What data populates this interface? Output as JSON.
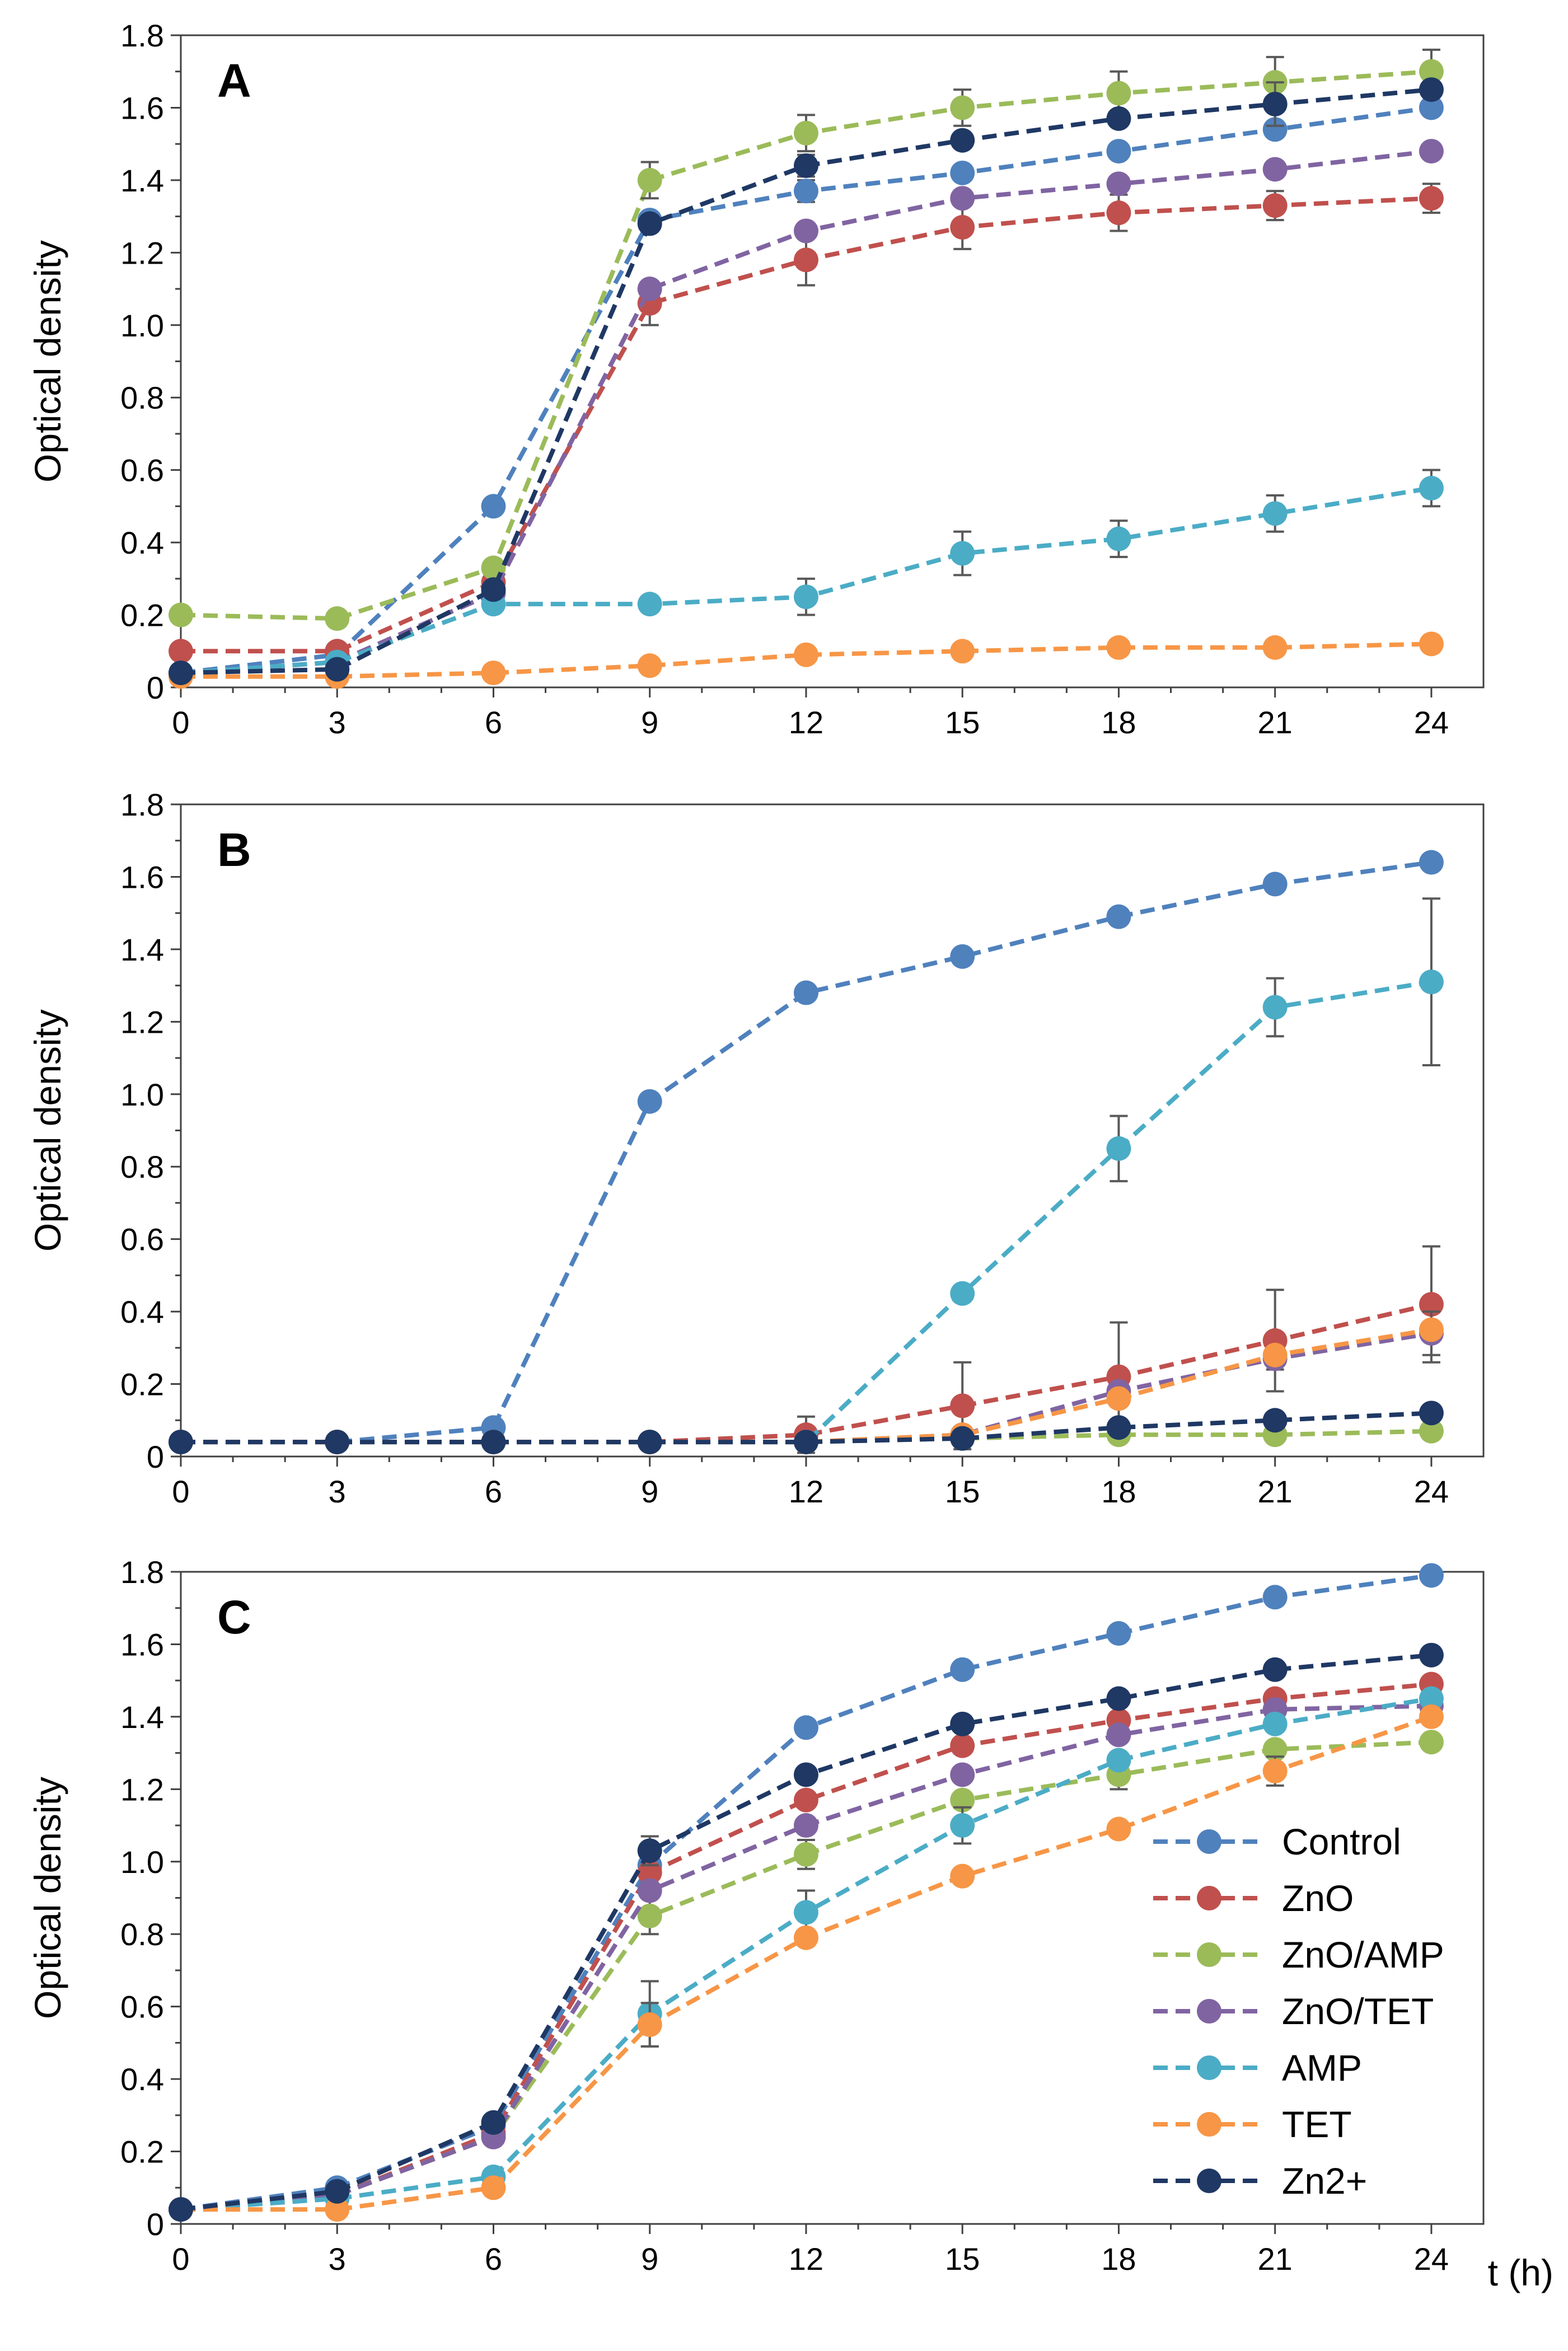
{
  "figure": {
    "x_unit_label": "t (h)",
    "series_styles": [
      {
        "name": "Control",
        "color": "#4f81bd"
      },
      {
        "name": "ZnO",
        "color": "#c0504d"
      },
      {
        "name": "ZnO/AMP",
        "color": "#9bbb59"
      },
      {
        "name": "ZnO/TET",
        "color": "#8064a2"
      },
      {
        "name": "AMP",
        "color": "#4bacc6"
      },
      {
        "name": "TET",
        "color": "#f79646"
      },
      {
        "name": "Zn2+",
        "color": "#1f3864"
      }
    ]
  },
  "chart_data": [
    {
      "type": "line",
      "title": "A",
      "xlabel": "",
      "ylabel": "Optical density",
      "x": [
        0,
        3,
        6,
        9,
        12,
        15,
        18,
        21,
        24
      ],
      "xlim": [
        0,
        25
      ],
      "ylim": [
        0,
        1.8
      ],
      "x_ticks": [
        "0",
        "3",
        "6",
        "9",
        "12",
        "15",
        "18",
        "21",
        "24"
      ],
      "y_ticks": [
        "0",
        "0.2",
        "0.4",
        "0.6",
        "0.8",
        "1.0",
        "1.2",
        "1.4",
        "1.6",
        "1.8"
      ],
      "legend": false,
      "series": [
        {
          "name": "Control",
          "values": [
            0.04,
            0.09,
            0.5,
            1.29,
            1.37,
            1.42,
            1.48,
            1.54,
            1.6
          ],
          "errors": [
            0,
            0,
            0,
            0,
            0.03,
            0,
            0.02,
            0,
            0
          ]
        },
        {
          "name": "ZnO",
          "values": [
            0.1,
            0.1,
            0.29,
            1.06,
            1.18,
            1.27,
            1.31,
            1.33,
            1.35
          ],
          "errors": [
            0,
            0,
            0,
            0.06,
            0.07,
            0.06,
            0.05,
            0.04,
            0.04
          ]
        },
        {
          "name": "ZnO/AMP",
          "values": [
            0.2,
            0.19,
            0.33,
            1.4,
            1.53,
            1.6,
            1.64,
            1.67,
            1.7
          ],
          "errors": [
            0,
            0,
            0,
            0.05,
            0.05,
            0.05,
            0.06,
            0.07,
            0.06
          ]
        },
        {
          "name": "ZnO/TET",
          "values": [
            0.04,
            0.07,
            0.26,
            1.1,
            1.26,
            1.35,
            1.39,
            1.43,
            1.48
          ],
          "errors": [
            0,
            0,
            0,
            0,
            0,
            0,
            0,
            0,
            0
          ]
        },
        {
          "name": "AMP",
          "values": [
            0.04,
            0.07,
            0.23,
            0.23,
            0.25,
            0.37,
            0.41,
            0.48,
            0.55
          ],
          "errors": [
            0,
            0,
            0,
            0,
            0.05,
            0.06,
            0.05,
            0.05,
            0.05
          ]
        },
        {
          "name": "TET",
          "values": [
            0.03,
            0.03,
            0.04,
            0.06,
            0.09,
            0.1,
            0.11,
            0.11,
            0.12
          ],
          "errors": [
            0,
            0,
            0,
            0,
            0,
            0,
            0,
            0,
            0
          ]
        },
        {
          "name": "Zn2+",
          "values": [
            0.04,
            0.05,
            0.27,
            1.28,
            1.44,
            1.51,
            1.57,
            1.61,
            1.65
          ],
          "errors": [
            0,
            0,
            0,
            0,
            0.03,
            0,
            0,
            0.06,
            0
          ]
        }
      ]
    },
    {
      "type": "line",
      "title": "B",
      "xlabel": "",
      "ylabel": "Optical density",
      "x": [
        0,
        3,
        6,
        9,
        12,
        15,
        18,
        21,
        24
      ],
      "xlim": [
        0,
        25
      ],
      "ylim": [
        0,
        1.8
      ],
      "x_ticks": [
        "0",
        "3",
        "6",
        "9",
        "12",
        "15",
        "18",
        "21",
        "24"
      ],
      "y_ticks": [
        "0",
        "0.2",
        "0.4",
        "0.6",
        "0.8",
        "1.0",
        "1.2",
        "1.4",
        "1.6",
        "1.8"
      ],
      "legend": false,
      "series": [
        {
          "name": "Control",
          "values": [
            0.04,
            0.04,
            0.08,
            0.98,
            1.28,
            1.38,
            1.49,
            1.58,
            1.64
          ],
          "errors": [
            0,
            0,
            0,
            0,
            0,
            0,
            0,
            0,
            0
          ]
        },
        {
          "name": "ZnO",
          "values": [
            0.04,
            0.04,
            0.04,
            0.04,
            0.06,
            0.14,
            0.22,
            0.32,
            0.42
          ],
          "errors": [
            0,
            0,
            0,
            0,
            0.05,
            0.12,
            0.15,
            0.14,
            0.16
          ]
        },
        {
          "name": "ZnO/AMP",
          "values": [
            0.04,
            0.04,
            0.04,
            0.04,
            0.04,
            0.05,
            0.06,
            0.06,
            0.07
          ],
          "errors": [
            0,
            0,
            0,
            0,
            0,
            0,
            0,
            0,
            0
          ]
        },
        {
          "name": "ZnO/TET",
          "values": [
            0.04,
            0.04,
            0.04,
            0.04,
            0.04,
            0.06,
            0.18,
            0.27,
            0.34
          ],
          "errors": [
            0,
            0,
            0,
            0,
            0,
            0,
            0,
            0.03,
            0.06
          ]
        },
        {
          "name": "AMP",
          "values": [
            0.04,
            0.04,
            0.04,
            0.04,
            0.04,
            0.45,
            0.85,
            1.24,
            1.31
          ],
          "errors": [
            0,
            0,
            0,
            0,
            0,
            0,
            0.09,
            0.08,
            0.23
          ]
        },
        {
          "name": "TET",
          "values": [
            0.04,
            0.04,
            0.04,
            0.04,
            0.04,
            0.06,
            0.16,
            0.28,
            0.35
          ],
          "errors": [
            0,
            0,
            0,
            0,
            0,
            0,
            0,
            0,
            0
          ]
        },
        {
          "name": "Zn2+",
          "values": [
            0.04,
            0.04,
            0.04,
            0.04,
            0.04,
            0.05,
            0.08,
            0.1,
            0.12
          ],
          "errors": [
            0,
            0,
            0,
            0,
            0,
            0,
            0,
            0,
            0
          ]
        }
      ]
    },
    {
      "type": "line",
      "title": "C",
      "xlabel": "t (h)",
      "ylabel": "Optical density",
      "x": [
        0,
        3,
        6,
        9,
        12,
        15,
        18,
        21,
        24
      ],
      "xlim": [
        0,
        25
      ],
      "ylim": [
        0,
        1.8
      ],
      "x_ticks": [
        "0",
        "3",
        "6",
        "9",
        "12",
        "15",
        "18",
        "21",
        "24"
      ],
      "y_ticks": [
        "0",
        "0.2",
        "0.4",
        "0.6",
        "0.8",
        "1.0",
        "1.2",
        "1.4",
        "1.6",
        "1.8"
      ],
      "legend": true,
      "legend_position": "right",
      "series": [
        {
          "name": "Control",
          "values": [
            0.04,
            0.1,
            0.27,
            0.99,
            1.37,
            1.53,
            1.63,
            1.73,
            1.79
          ],
          "errors": [
            0,
            0,
            0,
            0,
            0,
            0,
            0,
            0,
            0
          ]
        },
        {
          "name": "ZnO",
          "values": [
            0.04,
            0.08,
            0.25,
            0.97,
            1.17,
            1.32,
            1.39,
            1.45,
            1.49
          ],
          "errors": [
            0,
            0,
            0,
            0,
            0,
            0,
            0,
            0,
            0
          ]
        },
        {
          "name": "ZnO/AMP",
          "values": [
            0.04,
            0.08,
            0.24,
            0.85,
            1.02,
            1.17,
            1.24,
            1.31,
            1.33
          ],
          "errors": [
            0,
            0,
            0,
            0.05,
            0.04,
            0,
            0.04,
            0,
            0
          ]
        },
        {
          "name": "ZnO/TET",
          "values": [
            0.04,
            0.08,
            0.24,
            0.92,
            1.1,
            1.24,
            1.35,
            1.42,
            1.43
          ],
          "errors": [
            0,
            0,
            0,
            0,
            0,
            0,
            0,
            0,
            0
          ]
        },
        {
          "name": "AMP",
          "values": [
            0.04,
            0.07,
            0.13,
            0.58,
            0.86,
            1.1,
            1.28,
            1.38,
            1.45
          ],
          "errors": [
            0,
            0,
            0,
            0.09,
            0.06,
            0.05,
            0,
            0,
            0
          ]
        },
        {
          "name": "TET",
          "values": [
            0.04,
            0.04,
            0.1,
            0.55,
            0.79,
            0.96,
            1.09,
            1.25,
            1.4
          ],
          "errors": [
            0,
            0,
            0,
            0.06,
            0,
            0,
            0,
            0.04,
            0
          ]
        },
        {
          "name": "Zn2+",
          "values": [
            0.04,
            0.09,
            0.28,
            1.03,
            1.24,
            1.38,
            1.45,
            1.53,
            1.57
          ],
          "errors": [
            0,
            0,
            0,
            0.04,
            0,
            0,
            0,
            0,
            0
          ]
        }
      ]
    }
  ]
}
